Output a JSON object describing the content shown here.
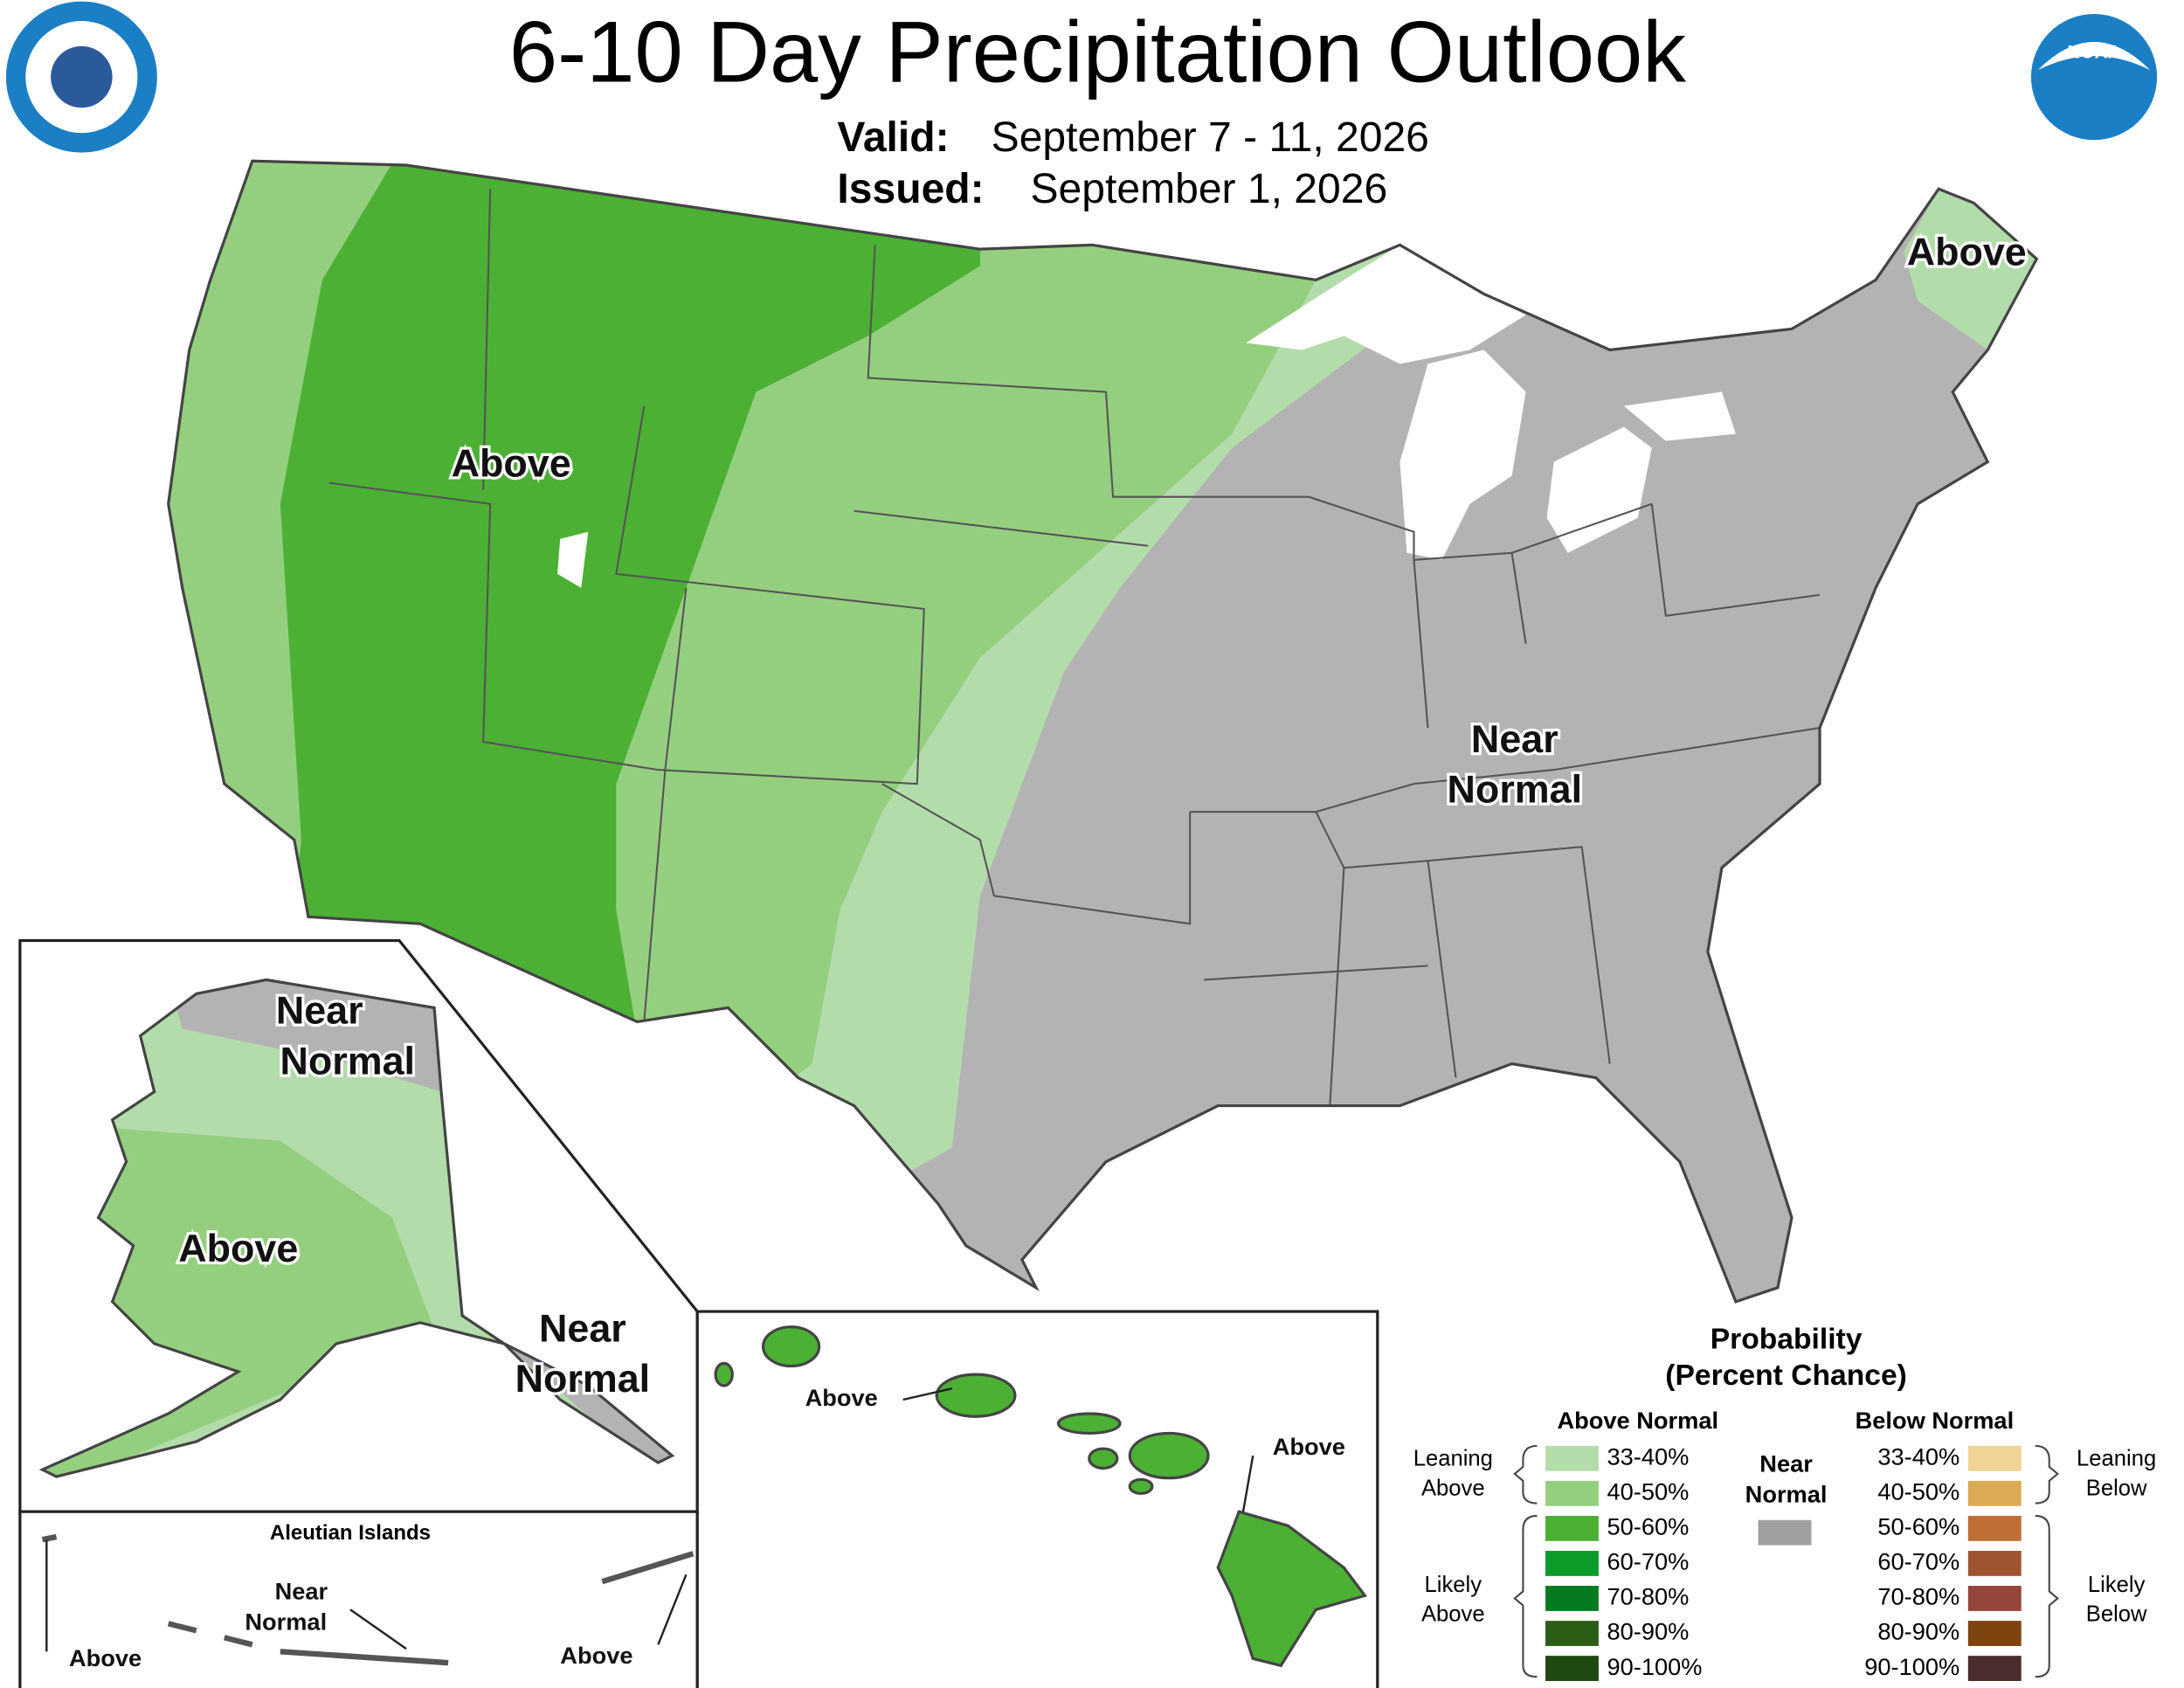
{
  "header": {
    "title": "6-10 Day Precipitation Outlook",
    "valid_label": "Valid:",
    "valid": "September 7 - 11, 2026",
    "issued_label": "Issued:",
    "issued": "September 1, 2026"
  },
  "logos": {
    "noaa": "NOAA"
  },
  "labels": {
    "conus_west": "Above",
    "conus_northeast": "Above",
    "conus_near": [
      "Near",
      "Normal"
    ],
    "alaska_north": [
      "Near",
      "Normal"
    ],
    "alaska_west": "Above",
    "alaska_southeast": [
      "Near",
      "Normal"
    ],
    "aleutians_title": "Aleutian Islands",
    "aleutians_west": "Above",
    "aleutians_near": [
      "Near",
      "Normal"
    ],
    "aleutians_east": "Above",
    "hawaii_west": "Above",
    "hawaii_east": "Above"
  },
  "legend": {
    "title": [
      "Probability",
      "(Percent Chance)"
    ],
    "above_header": "Above Normal",
    "below_header": "Below Normal",
    "near_header": [
      "Near",
      "Normal"
    ],
    "near_color": "#a0a0a0",
    "leaning_above": [
      "Leaning",
      "Above"
    ],
    "likely_above": [
      "Likely",
      "Above"
    ],
    "leaning_below": [
      "Leaning",
      "Below"
    ],
    "likely_below": [
      "Likely",
      "Below"
    ],
    "above": [
      {
        "range": "33-40%",
        "color": "#b3dcab"
      },
      {
        "range": "40-50%",
        "color": "#94cf7f"
      },
      {
        "range": "50-60%",
        "color": "#4cb034"
      },
      {
        "range": "60-70%",
        "color": "#0d9b2a"
      },
      {
        "range": "70-80%",
        "color": "#057a20"
      },
      {
        "range": "80-90%",
        "color": "#2b5e15"
      },
      {
        "range": "90-100%",
        "color": "#1f4a0f"
      }
    ],
    "below": [
      {
        "range": "33-40%",
        "color": "#f0d493"
      },
      {
        "range": "40-50%",
        "color": "#dcaa52"
      },
      {
        "range": "50-60%",
        "color": "#bf6f35"
      },
      {
        "range": "60-70%",
        "color": "#a15432"
      },
      {
        "range": "70-80%",
        "color": "#96453a"
      },
      {
        "range": "80-90%",
        "color": "#7e4410"
      },
      {
        "range": "90-100%",
        "color": "#4a2d2c"
      }
    ]
  }
}
